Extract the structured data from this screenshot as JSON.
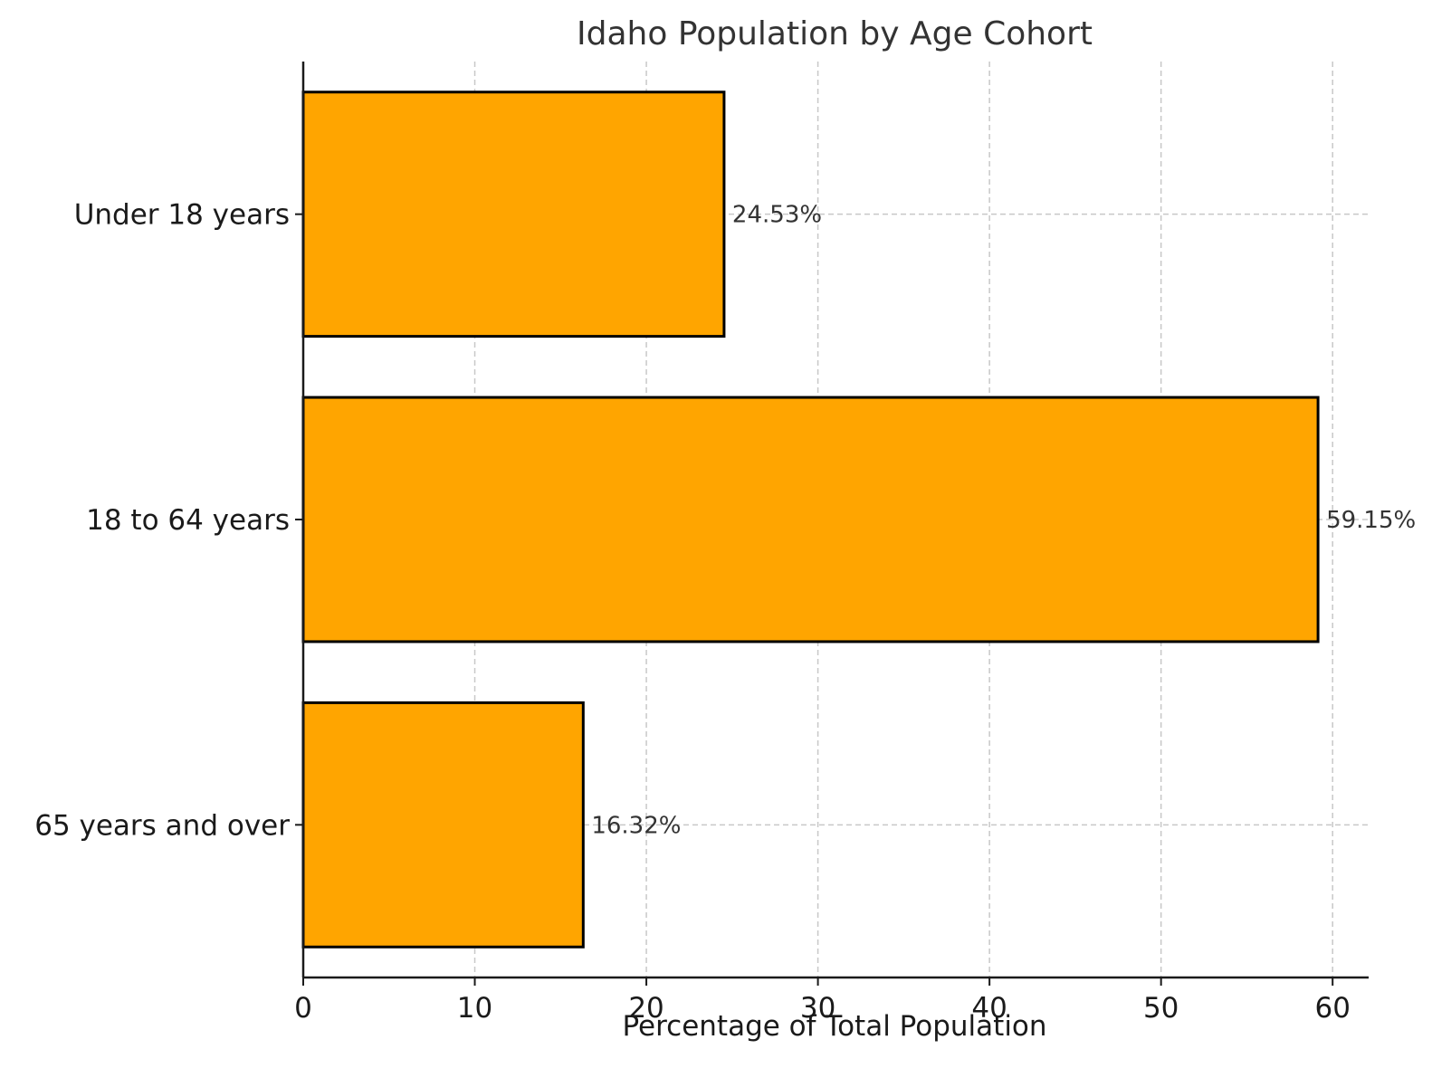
{
  "chart_data": {
    "type": "bar",
    "orientation": "horizontal",
    "title": "Idaho Population by Age Cohort",
    "xlabel": "Percentage of Total Population",
    "ylabel": "",
    "categories": [
      "Under 18 years",
      "18 to 64 years",
      "65 years and over"
    ],
    "values": [
      24.53,
      59.15,
      16.32
    ],
    "value_labels": [
      "24.53%",
      "59.15%",
      "16.32%"
    ],
    "xlim": [
      0,
      62.1
    ],
    "xticks": [
      0,
      10,
      20,
      30,
      40,
      50,
      60
    ],
    "xtick_labels": [
      "0",
      "10",
      "20",
      "30",
      "40",
      "50",
      "60"
    ],
    "grid": true,
    "bar_color": "#FFA500",
    "edge_color": "#000000"
  }
}
